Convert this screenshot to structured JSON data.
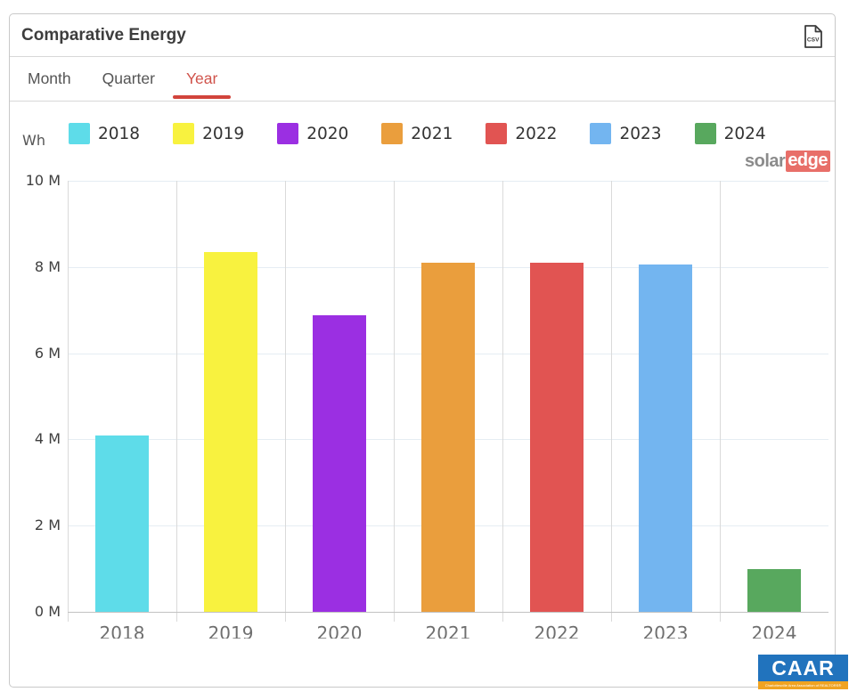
{
  "header": {
    "title": "Comparative Energy",
    "export_button": "csv-export"
  },
  "tabs": [
    {
      "label": "Month",
      "active": false
    },
    {
      "label": "Quarter",
      "active": false
    },
    {
      "label": "Year",
      "active": true
    }
  ],
  "tab_accent_color": "#d2443c",
  "chart_data": {
    "type": "bar",
    "title": "Comparative Energy",
    "unit_label": "Wh",
    "categories": [
      "2018",
      "2019",
      "2020",
      "2021",
      "2022",
      "2023",
      "2024"
    ],
    "values": [
      4.1,
      8.35,
      6.87,
      8.1,
      8.1,
      8.06,
      1.0
    ],
    "values_unit": "MWh",
    "colors": [
      "#5edce9",
      "#f8f23f",
      "#9b2fe2",
      "#ea9e3d",
      "#e15452",
      "#73b5f0",
      "#58a85e"
    ],
    "ylim": [
      0,
      10
    ],
    "ytick_step": 2,
    "ytick_labels": [
      "0 M",
      "2 M",
      "4 M",
      "6 M",
      "8 M",
      "10 M"
    ],
    "legend_position": "top",
    "grid": true
  },
  "branding": {
    "solaredge_part1": "solar",
    "solaredge_part2": "edge",
    "caar_text": "CAAR",
    "caar_subtext": "Charlottesville Area Association of REALTORS®"
  }
}
